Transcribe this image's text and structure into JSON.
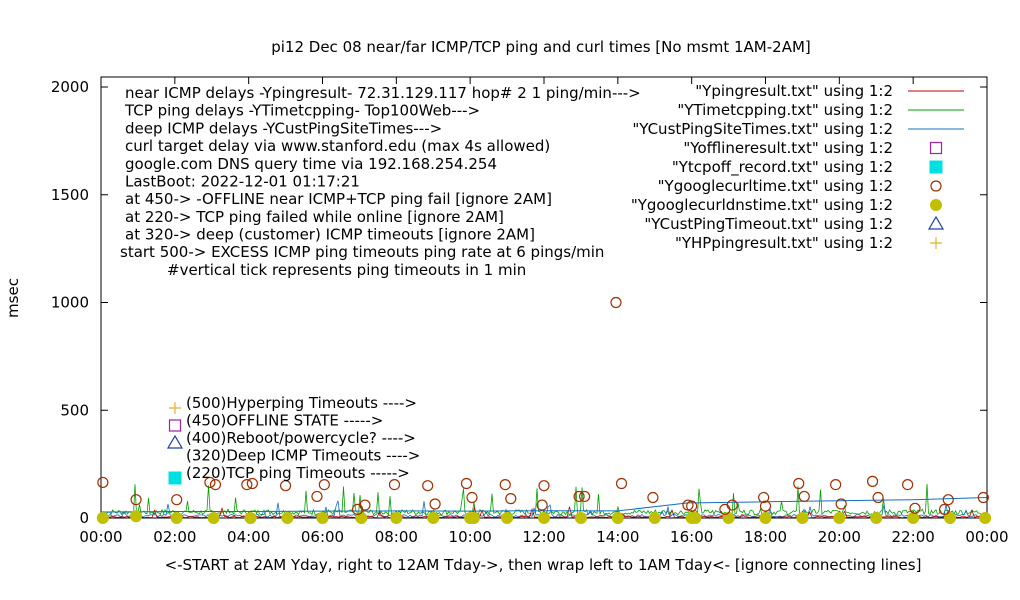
{
  "chart_data": {
    "type": "scatter",
    "title": "pi12 Dec 08  near/far ICMP/TCP ping and curl times [No msmt 1AM-2AM]",
    "xlabel": "<-START at 2AM Yday, right to 12AM Tday->, then wrap left to 1AM Tday<- [ignore connecting lines]",
    "ylabel": "msec",
    "x_range_hours": [
      0,
      24
    ],
    "ylim": [
      0,
      2050
    ],
    "x_ticks": [
      "00:00",
      "02:00",
      "04:00",
      "06:00",
      "08:00",
      "10:00",
      "12:00",
      "14:00",
      "16:00",
      "18:00",
      "20:00",
      "22:00",
      "00:00"
    ],
    "y_ticks": [
      0,
      500,
      1000,
      1500,
      2000
    ],
    "y_tick_labels": [
      "0",
      "500",
      "1000",
      "1500",
      "2000"
    ],
    "info_lines": [
      "near ICMP delays -Ypingresult- 72.31.129.117 hop# 2  1 ping/min--->",
      "TCP ping delays -YTimetcpping- Top100Web--->",
      "deep ICMP delays -YCustPingSiteTimes--->",
      "curl target delay via www.stanford.edu (max 4s allowed)",
      "google.com DNS query time via 192.168.254.254",
      "LastBoot: 2022-12-01 01:17:21",
      "at 450-> -OFFLINE near ICMP+TCP ping fail [ignore 2AM]",
      "at 220-> TCP ping failed while online [ignore 2AM]",
      "at 320-> deep (customer) ICMP timeouts [ignore 2AM]"
    ],
    "info_line_extra": "start 500-> EXCESS ICMP ping timeouts ping rate at 6 pings/min",
    "info_line_note": "#vertical tick represents ping timeouts in 1 min",
    "marker_key": [
      {
        "label": "(500)Hyperping Timeouts ---->",
        "marker": "plus",
        "color": "#e6b02e"
      },
      {
        "label": "(450)OFFLINE STATE ----->",
        "marker": "square",
        "color": "#a020a0"
      },
      {
        "label": "(400)Reboot/powercycle? ---->",
        "marker": "triangle",
        "color": "#2040a0"
      },
      {
        "label": "(320)Deep ICMP Timeouts ---->",
        "marker": "",
        "color": ""
      },
      {
        "label": "(220)TCP ping Timeouts ----->",
        "marker": "filled-square",
        "color": "#00e0e0"
      }
    ],
    "legend": [
      {
        "name": "\"Ypingresult.txt\" using 1:2",
        "marker": "line",
        "color": "#c00000"
      },
      {
        "name": "\"YTimetcpping.txt\" using 1:2",
        "marker": "line",
        "color": "#00a000"
      },
      {
        "name": "\"YCustPingSiteTimes.txt\" using 1:2",
        "marker": "line",
        "color": "#1070c0"
      },
      {
        "name": "\"Yofflineresult.txt\" using 1:2",
        "marker": "square",
        "color": "#a020a0"
      },
      {
        "name": "\"Ytcpoff_record.txt\" using 1:2",
        "marker": "filled-square",
        "color": "#00e0e0"
      },
      {
        "name": "\"Ygooglecurltime.txt\" using 1:2",
        "marker": "circle",
        "color": "#a03000"
      },
      {
        "name": "\"Ygooglecurldnstime.txt\" using 1:2",
        "marker": "filled-circle",
        "color": "#c0c000"
      },
      {
        "name": "\"YCustPingTimeout.txt\" using 1:2",
        "marker": "triangle",
        "color": "#2040a0"
      },
      {
        "name": "\"YHPpingresult.txt\" using 1:2",
        "marker": "plus",
        "color": "#e6b02e"
      }
    ],
    "legend_position": "top-right",
    "curl_times": {
      "x": [
        0.05,
        0.95,
        2.05,
        2.95,
        3.1,
        3.95,
        4.1,
        5.0,
        5.85,
        6.05,
        6.95,
        7.15,
        7.95,
        8.85,
        9.05,
        9.9,
        10.05,
        10.95,
        11.1,
        11.95,
        12.0,
        12.95,
        13.1,
        13.95,
        14.1,
        14.95,
        15.9,
        16.0,
        16.9,
        17.1,
        17.95,
        18.0,
        18.9,
        19.05,
        19.9,
        20.05,
        20.9,
        21.05,
        21.85,
        22.05,
        22.85,
        22.95,
        23.9
      ],
      "y": [
        165,
        85,
        85,
        165,
        155,
        155,
        160,
        150,
        100,
        155,
        40,
        60,
        155,
        150,
        65,
        160,
        95,
        155,
        90,
        60,
        150,
        100,
        100,
        1000,
        160,
        95,
        60,
        55,
        40,
        60,
        95,
        55,
        160,
        100,
        155,
        65,
        170,
        95,
        155,
        45,
        40,
        85,
        95
      ]
    },
    "dns_times": {
      "x": [
        0.05,
        0.95,
        2.05,
        3.05,
        4.05,
        5.05,
        6.0,
        7.05,
        8.0,
        9.0,
        10.0,
        10.1,
        11.0,
        12.0,
        13.0,
        14.0,
        15.0,
        16.0,
        16.1,
        17.0,
        18.0,
        19.0,
        20.0,
        21.0,
        22.0,
        23.0,
        23.95
      ],
      "y": [
        0,
        8,
        0,
        0,
        0,
        0,
        0,
        0,
        0,
        0,
        0,
        0,
        0,
        0,
        0,
        0,
        0,
        0,
        0,
        0,
        0,
        0,
        0,
        0,
        0,
        0,
        0
      ]
    },
    "cust_ping_line": {
      "x": [
        0,
        2,
        4,
        6,
        8,
        10,
        12,
        14,
        15.9,
        16.1,
        18,
        20,
        22,
        24
      ],
      "y": [
        28,
        30,
        30,
        32,
        33,
        32,
        34,
        33,
        70,
        70,
        75,
        80,
        85,
        95
      ]
    },
    "timeouts_baseline_ms": 15
  }
}
